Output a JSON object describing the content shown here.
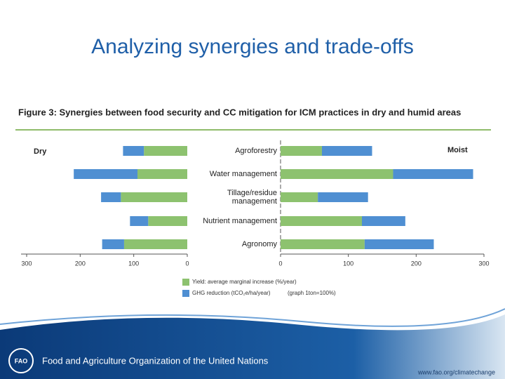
{
  "title": "Analyzing synergies and trade-offs",
  "footer": {
    "organization": "Food and Agriculture Organization of the United Nations",
    "url": "www.fao.org/climatechange"
  },
  "chart_data": {
    "type": "bar",
    "orientation": "horizontal",
    "stacked": true,
    "title": "Figure 3: Synergies between food security and CC mitigation for ICM practices in dry and humid areas",
    "categories": [
      "Agroforestry",
      "Water management",
      "Tillage/residue management",
      "Nutrient management",
      "Agronomy"
    ],
    "series": [
      {
        "name": "Yield: average marginal increase (%/year)",
        "color": "#8dc26f"
      },
      {
        "name": "GHG reduction (tCO₂e/ha/year)",
        "color": "#4f8fd2"
      }
    ],
    "legend_note": "(graph 1ton=100%)",
    "panels": [
      {
        "label": "Dry",
        "xlim": [
          300,
          0
        ],
        "xticks": [
          300,
          200,
          100,
          0
        ],
        "values": [
          [
            81,
            93,
            124,
            73,
            118
          ],
          [
            39,
            119,
            37,
            34,
            41
          ]
        ]
      },
      {
        "label": "Moist",
        "xlim": [
          0,
          300
        ],
        "xticks": [
          0,
          100,
          200,
          300
        ],
        "values": [
          [
            61,
            166,
            55,
            120,
            124
          ],
          [
            74,
            118,
            74,
            64,
            102
          ]
        ]
      }
    ]
  }
}
